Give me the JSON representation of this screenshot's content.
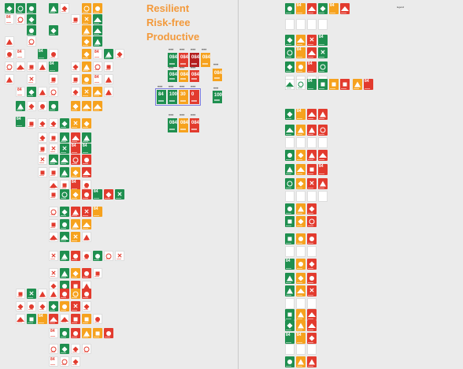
{
  "headings": {
    "line1": "Resilient",
    "line2": "Risk-free",
    "line3": "Productive"
  },
  "colors": {
    "green": "#1f8f4f",
    "orange": "#f6a21e",
    "red": "#e23b2e",
    "darkred": "#b51f1f",
    "white": "#ffffff",
    "heading": "#f39a3c",
    "select": "#7b7be0"
  },
  "big_tiles": {
    "row1": [
      {
        "value": "084",
        "color": "green"
      },
      {
        "value": "084",
        "color": "red"
      },
      {
        "value": "084",
        "color": "darkred"
      },
      {
        "value": "084",
        "color": "orange"
      }
    ],
    "row2": [
      {
        "value": "084",
        "color": "green"
      },
      {
        "value": "084",
        "color": "orange"
      },
      {
        "value": "084",
        "color": "red"
      }
    ],
    "row3": [
      {
        "value": "84",
        "color": "green"
      },
      {
        "value": "100",
        "color": "green"
      },
      {
        "value": "30",
        "color": "orange"
      },
      {
        "value": "0",
        "color": "red"
      }
    ],
    "row3_single": {
      "value": "100",
      "color": "green"
    },
    "row3_single_orange": {
      "value": "084",
      "color": "orange"
    },
    "row4": [
      {
        "value": "084",
        "color": "green"
      },
      {
        "value": "084",
        "color": "orange"
      },
      {
        "value": "084",
        "color": "red"
      }
    ]
  },
  "left_values": {
    "a": "0.94",
    "b": "0.94",
    "c": "084",
    "d": "084",
    "e": "84",
    "f": "84",
    "g": "84"
  },
  "top_right_label": "legend",
  "icon_names": [
    "mountain-icon",
    "warning-triangle-icon",
    "stop-square-icon",
    "check-circle-icon",
    "cross-icon",
    "ring-gauge-icon",
    "diamond-alert-icon"
  ]
}
